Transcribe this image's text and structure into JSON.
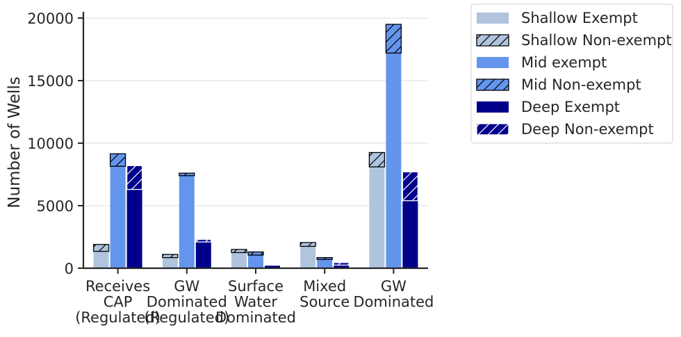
{
  "chart_data": {
    "type": "bar",
    "stacked": true,
    "ylabel": "Number of Wells",
    "ylim": [
      0,
      20500
    ],
    "yticks": [
      0,
      5000,
      10000,
      15000,
      20000
    ],
    "categories": [
      [
        "Receives",
        "CAP",
        "(Regulated)"
      ],
      [
        "GW",
        "Dominated",
        "(Regulated)"
      ],
      [
        "Surface",
        "Water",
        "Dominated"
      ],
      [
        "Mixed",
        "Source"
      ],
      [
        "GW",
        "Dominated"
      ]
    ],
    "groups": [
      {
        "name": "Shallow",
        "exempt": [
          1350,
          850,
          1250,
          1750,
          8100
        ],
        "nonexempt": [
          550,
          250,
          250,
          300,
          1150
        ]
      },
      {
        "name": "Mid",
        "exempt": [
          8150,
          7400,
          1050,
          700,
          17200
        ],
        "nonexempt": [
          1000,
          200,
          250,
          150,
          2300
        ]
      },
      {
        "name": "Deep",
        "exempt": [
          6300,
          2100,
          200,
          250,
          5400
        ],
        "nonexempt": [
          1900,
          200,
          0,
          200,
          2300
        ]
      }
    ],
    "colors": {
      "shallow": "#b0c4de",
      "mid": "#6495ed",
      "deep": "#00008b"
    },
    "legend": {
      "position": "outside-top-right",
      "entries": [
        {
          "label": "Shallow Exempt",
          "color": "#b0c4de",
          "hatched": false,
          "edge": "none"
        },
        {
          "label": "Shallow Non-exempt",
          "color": "#b0c4de",
          "hatched": true,
          "edge": "black"
        },
        {
          "label": "Mid exempt",
          "color": "#6495ed",
          "hatched": false,
          "edge": "none"
        },
        {
          "label": "Mid Non-exempt",
          "color": "#6495ed",
          "hatched": true,
          "edge": "black"
        },
        {
          "label": "Deep Exempt",
          "color": "#00008b",
          "hatched": false,
          "edge": "none"
        },
        {
          "label": "Deep Non-exempt",
          "color": "#00008b",
          "hatched": true,
          "edge": "white"
        }
      ]
    },
    "grid": "y-major"
  }
}
